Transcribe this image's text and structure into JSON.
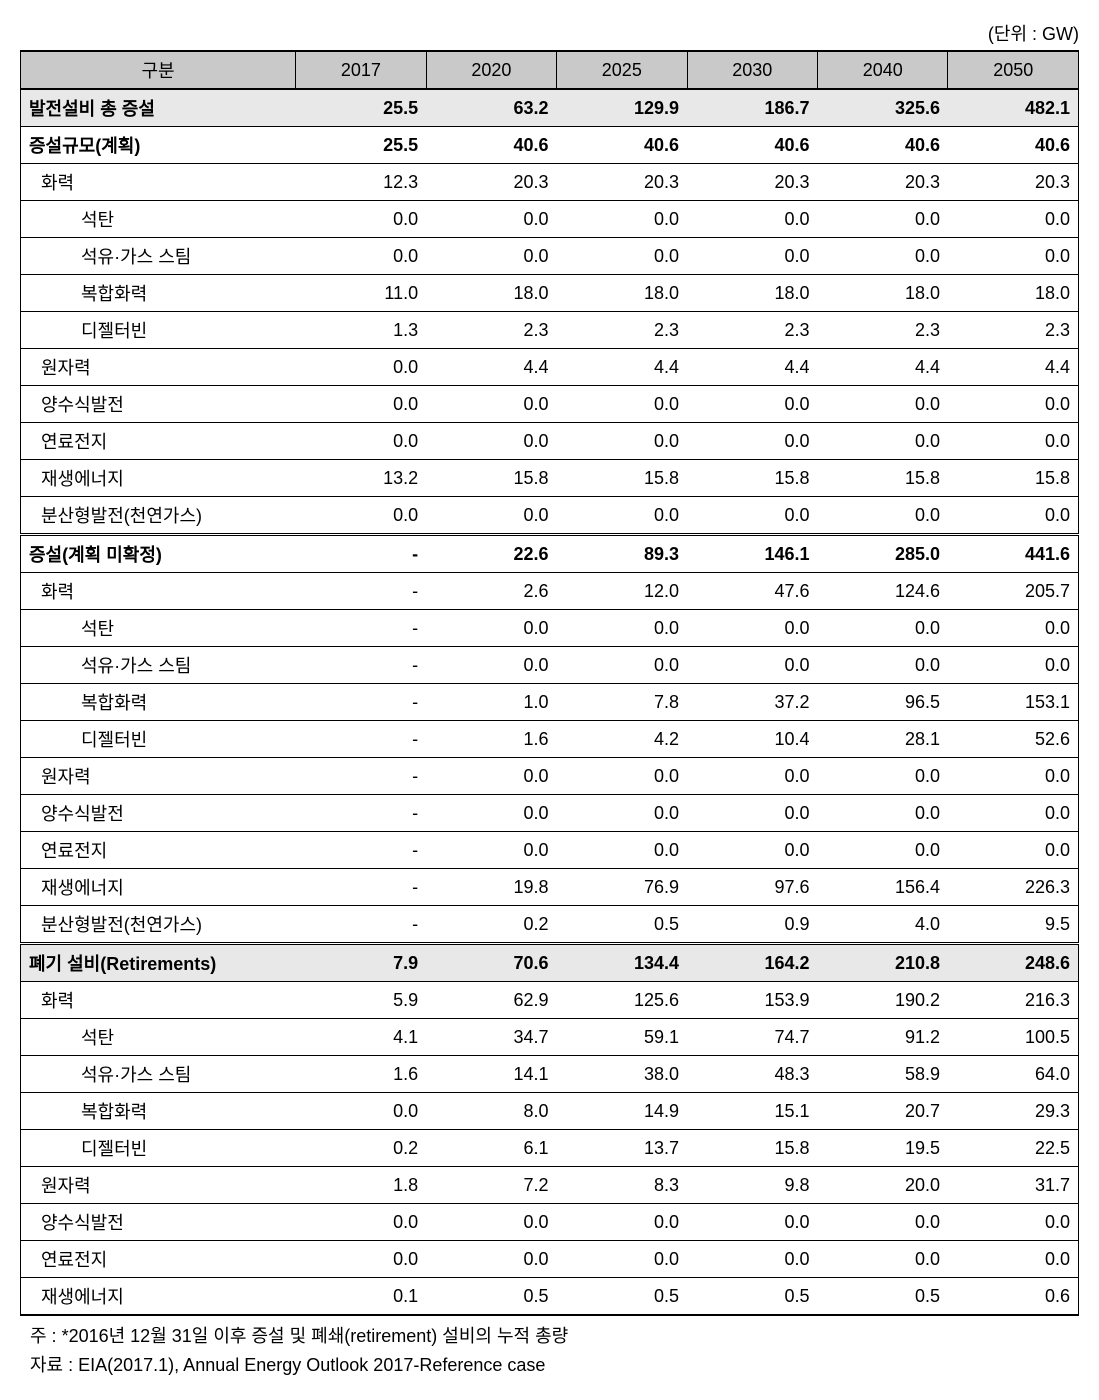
{
  "unit_label": "(단위 : GW)",
  "columns": [
    "구분",
    "2017",
    "2020",
    "2025",
    "2030",
    "2040",
    "2050"
  ],
  "rows": [
    {
      "style": "section",
      "indent": 0,
      "label": "발전설비 총 증설",
      "vals": [
        "25.5",
        "63.2",
        "129.9",
        "186.7",
        "325.6",
        "482.1"
      ]
    },
    {
      "style": "bold",
      "indent": 0,
      "label": "증설규모(계획)",
      "vals": [
        "25.5",
        "40.6",
        "40.6",
        "40.6",
        "40.6",
        "40.6"
      ]
    },
    {
      "style": "",
      "indent": 1,
      "label": "화력",
      "vals": [
        "12.3",
        "20.3",
        "20.3",
        "20.3",
        "20.3",
        "20.3"
      ]
    },
    {
      "style": "",
      "indent": 2,
      "label": "석탄",
      "vals": [
        "0.0",
        "0.0",
        "0.0",
        "0.0",
        "0.0",
        "0.0"
      ]
    },
    {
      "style": "",
      "indent": 2,
      "label": "석유·가스 스팀",
      "vals": [
        "0.0",
        "0.0",
        "0.0",
        "0.0",
        "0.0",
        "0.0"
      ]
    },
    {
      "style": "",
      "indent": 2,
      "label": "복합화력",
      "vals": [
        "11.0",
        "18.0",
        "18.0",
        "18.0",
        "18.0",
        "18.0"
      ]
    },
    {
      "style": "",
      "indent": 2,
      "label": "디젤터빈",
      "vals": [
        "1.3",
        "2.3",
        "2.3",
        "2.3",
        "2.3",
        "2.3"
      ]
    },
    {
      "style": "",
      "indent": 1,
      "label": "원자력",
      "vals": [
        "0.0",
        "4.4",
        "4.4",
        "4.4",
        "4.4",
        "4.4"
      ]
    },
    {
      "style": "",
      "indent": 1,
      "label": "양수식발전",
      "vals": [
        "0.0",
        "0.0",
        "0.0",
        "0.0",
        "0.0",
        "0.0"
      ]
    },
    {
      "style": "",
      "indent": 1,
      "label": "연료전지",
      "vals": [
        "0.0",
        "0.0",
        "0.0",
        "0.0",
        "0.0",
        "0.0"
      ]
    },
    {
      "style": "",
      "indent": 1,
      "label": "재생에너지",
      "vals": [
        "13.2",
        "15.8",
        "15.8",
        "15.8",
        "15.8",
        "15.8"
      ]
    },
    {
      "style": "",
      "indent": 1,
      "label": "분산형발전(천연가스)",
      "vals": [
        "0.0",
        "0.0",
        "0.0",
        "0.0",
        "0.0",
        "0.0"
      ]
    },
    {
      "style": "bold double-top",
      "indent": 0,
      "label": "증설(계획 미확정)",
      "vals": [
        "-",
        "22.6",
        "89.3",
        "146.1",
        "285.0",
        "441.6"
      ]
    },
    {
      "style": "",
      "indent": 1,
      "label": "화력",
      "vals": [
        "-",
        "2.6",
        "12.0",
        "47.6",
        "124.6",
        "205.7"
      ]
    },
    {
      "style": "",
      "indent": 2,
      "label": "석탄",
      "vals": [
        "-",
        "0.0",
        "0.0",
        "0.0",
        "0.0",
        "0.0"
      ]
    },
    {
      "style": "",
      "indent": 2,
      "label": "석유·가스 스팀",
      "vals": [
        "-",
        "0.0",
        "0.0",
        "0.0",
        "0.0",
        "0.0"
      ]
    },
    {
      "style": "",
      "indent": 2,
      "label": "복합화력",
      "vals": [
        "-",
        "1.0",
        "7.8",
        "37.2",
        "96.5",
        "153.1"
      ]
    },
    {
      "style": "",
      "indent": 2,
      "label": "디젤터빈",
      "vals": [
        "-",
        "1.6",
        "4.2",
        "10.4",
        "28.1",
        "52.6"
      ]
    },
    {
      "style": "",
      "indent": 1,
      "label": "원자력",
      "vals": [
        "-",
        "0.0",
        "0.0",
        "0.0",
        "0.0",
        "0.0"
      ]
    },
    {
      "style": "",
      "indent": 1,
      "label": "양수식발전",
      "vals": [
        "-",
        "0.0",
        "0.0",
        "0.0",
        "0.0",
        "0.0"
      ]
    },
    {
      "style": "",
      "indent": 1,
      "label": "연료전지",
      "vals": [
        "-",
        "0.0",
        "0.0",
        "0.0",
        "0.0",
        "0.0"
      ]
    },
    {
      "style": "",
      "indent": 1,
      "label": "재생에너지",
      "vals": [
        "-",
        "19.8",
        "76.9",
        "97.6",
        "156.4",
        "226.3"
      ]
    },
    {
      "style": "",
      "indent": 1,
      "label": "분산형발전(천연가스)",
      "vals": [
        "-",
        "0.2",
        "0.5",
        "0.9",
        "4.0",
        "9.5"
      ]
    },
    {
      "style": "section double-top",
      "indent": 0,
      "label": "폐기 설비(Retirements)",
      "vals": [
        "7.9",
        "70.6",
        "134.4",
        "164.2",
        "210.8",
        "248.6"
      ]
    },
    {
      "style": "",
      "indent": 1,
      "label": "화력",
      "vals": [
        "5.9",
        "62.9",
        "125.6",
        "153.9",
        "190.2",
        "216.3"
      ]
    },
    {
      "style": "",
      "indent": 2,
      "label": "석탄",
      "vals": [
        "4.1",
        "34.7",
        "59.1",
        "74.7",
        "91.2",
        "100.5"
      ]
    },
    {
      "style": "",
      "indent": 2,
      "label": "석유·가스 스팀",
      "vals": [
        "1.6",
        "14.1",
        "38.0",
        "48.3",
        "58.9",
        "64.0"
      ]
    },
    {
      "style": "",
      "indent": 2,
      "label": "복합화력",
      "vals": [
        "0.0",
        "8.0",
        "14.9",
        "15.1",
        "20.7",
        "29.3"
      ]
    },
    {
      "style": "",
      "indent": 2,
      "label": "디젤터빈",
      "vals": [
        "0.2",
        "6.1",
        "13.7",
        "15.8",
        "19.5",
        "22.5"
      ]
    },
    {
      "style": "",
      "indent": 1,
      "label": "원자력",
      "vals": [
        "1.8",
        "7.2",
        "8.3",
        "9.8",
        "20.0",
        "31.7"
      ]
    },
    {
      "style": "",
      "indent": 1,
      "label": "양수식발전",
      "vals": [
        "0.0",
        "0.0",
        "0.0",
        "0.0",
        "0.0",
        "0.0"
      ]
    },
    {
      "style": "",
      "indent": 1,
      "label": "연료전지",
      "vals": [
        "0.0",
        "0.0",
        "0.0",
        "0.0",
        "0.0",
        "0.0"
      ]
    },
    {
      "style": "",
      "indent": 1,
      "label": "재생에너지",
      "vals": [
        "0.1",
        "0.5",
        "0.5",
        "0.5",
        "0.5",
        "0.6"
      ]
    }
  ],
  "note1": "주 : *2016년 12월 31일 이후 증설 및 폐쇄(retirement) 설비의 누적 총량",
  "note2": "자료 : EIA(2017.1), Annual Energy Outlook 2017-Reference case"
}
